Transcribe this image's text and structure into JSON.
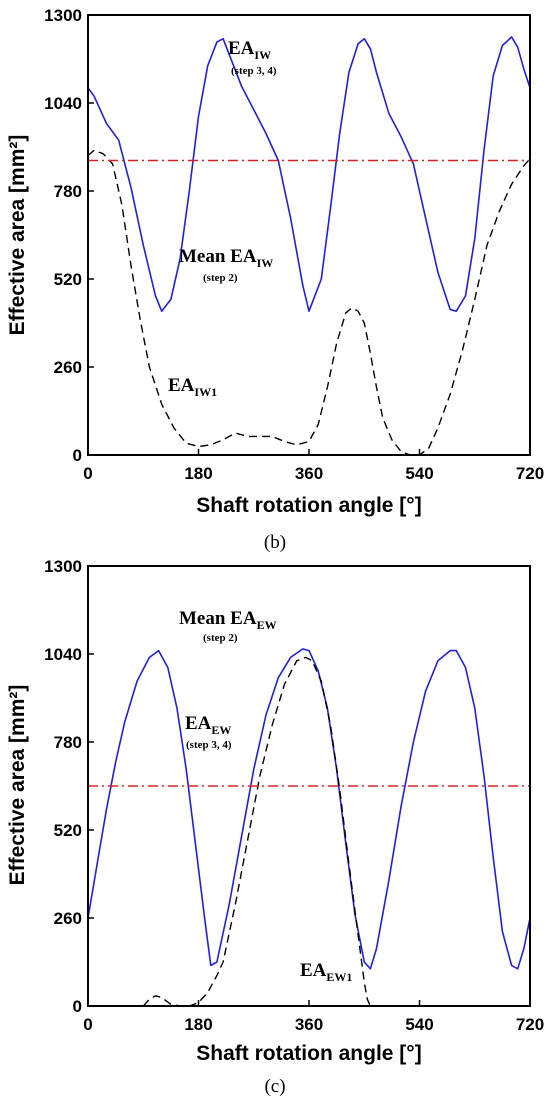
{
  "chart_data": [
    {
      "type": "line",
      "panel": "b",
      "caption": "(b)",
      "xlabel": "Shaft rotation angle [°]",
      "ylabel": "Effective area [mm²]",
      "xlim": [
        0,
        720
      ],
      "ylim": [
        0,
        1300
      ],
      "xticks": [
        0,
        180,
        360,
        540,
        720
      ],
      "yticks": [
        0,
        260,
        520,
        780,
        1040,
        1300
      ],
      "xtick_labels": [
        "0",
        "180",
        "360",
        "540",
        "720"
      ],
      "ytick_labels": [
        "0",
        "260",
        "520",
        "780",
        1040,
        "1300"
      ],
      "grid": false,
      "series": [
        {
          "name": "EA_IW (step 3, 4)",
          "style": "solid",
          "color": "#1f1fe6",
          "x": [
            0,
            10,
            30,
            50,
            70,
            90,
            110,
            120,
            135,
            150,
            165,
            180,
            195,
            210,
            220,
            235,
            250,
            270,
            290,
            310,
            330,
            350,
            360,
            380,
            395,
            410,
            425,
            440,
            450,
            460,
            470,
            490,
            510,
            530,
            550,
            570,
            590,
            600,
            615,
            630,
            645,
            660,
            675,
            690,
            700,
            710,
            720
          ],
          "y": [
            1085,
            1060,
            980,
            930,
            790,
            620,
            470,
            425,
            460,
            580,
            780,
            1000,
            1150,
            1220,
            1230,
            1160,
            1090,
            1020,
            950,
            870,
            700,
            500,
            425,
            520,
            730,
            950,
            1130,
            1215,
            1230,
            1200,
            1130,
            1010,
            940,
            860,
            700,
            540,
            430,
            425,
            470,
            640,
            900,
            1120,
            1210,
            1235,
            1205,
            1140,
            1085
          ]
        },
        {
          "name": "EA_IW1",
          "style": "dashed",
          "color": "#000000",
          "x": [
            0,
            10,
            25,
            40,
            55,
            70,
            85,
            100,
            120,
            140,
            160,
            180,
            200,
            220,
            240,
            260,
            280,
            300,
            320,
            340,
            360,
            375,
            390,
            405,
            420,
            430,
            440,
            450,
            460,
            470,
            480,
            495,
            510,
            525,
            540,
            555,
            570,
            590,
            610,
            630,
            650,
            670,
            690,
            710,
            720
          ],
          "y": [
            885,
            900,
            890,
            860,
            740,
            560,
            400,
            260,
            150,
            80,
            35,
            25,
            30,
            45,
            65,
            55,
            55,
            55,
            40,
            30,
            40,
            90,
            200,
            330,
            420,
            435,
            425,
            390,
            300,
            200,
            110,
            45,
            10,
            0,
            0,
            20,
            80,
            180,
            310,
            460,
            620,
            720,
            800,
            855,
            875
          ]
        },
        {
          "name": "Mean EA_IW (step 2)",
          "style": "dashdot",
          "color": "#e02020",
          "x": [
            0,
            720
          ],
          "y": [
            870,
            870
          ]
        }
      ],
      "annotations": [
        {
          "main": "EA",
          "sub": "IW",
          "step": "(step 3, 4)"
        },
        {
          "main": "Mean EA",
          "sub": "IW",
          "step": "(step 2)"
        },
        {
          "main": "EA",
          "sub": "IW1",
          "step": ""
        }
      ]
    },
    {
      "type": "line",
      "panel": "c",
      "caption": "(c)",
      "xlabel": "Shaft rotation angle [°]",
      "ylabel": "Effective area [mm²]",
      "xlim": [
        0,
        720
      ],
      "ylim": [
        0,
        1300
      ],
      "xticks": [
        0,
        180,
        360,
        540,
        720
      ],
      "yticks": [
        0,
        260,
        520,
        780,
        1040,
        1300
      ],
      "xtick_labels": [
        "0",
        "180",
        "360",
        "540",
        "720"
      ],
      "ytick_labels": [
        "0",
        "260",
        "520",
        "780",
        "1040",
        "1300"
      ],
      "grid": false,
      "series": [
        {
          "name": "EA_EW (step 3, 4)",
          "style": "solid",
          "color": "#1f1fe6",
          "x": [
            0,
            15,
            30,
            45,
            60,
            80,
            100,
            115,
            130,
            145,
            160,
            175,
            190,
            200,
            210,
            230,
            250,
            270,
            290,
            310,
            330,
            350,
            360,
            375,
            390,
            405,
            420,
            435,
            450,
            460,
            470,
            490,
            510,
            530,
            550,
            570,
            590,
            600,
            615,
            630,
            645,
            660,
            675,
            690,
            700,
            710,
            720
          ],
          "y": [
            260,
            420,
            580,
            720,
            840,
            960,
            1030,
            1050,
            1000,
            880,
            700,
            480,
            260,
            120,
            130,
            300,
            500,
            700,
            860,
            970,
            1030,
            1055,
            1050,
            990,
            880,
            700,
            480,
            270,
            130,
            110,
            170,
            370,
            590,
            780,
            930,
            1020,
            1050,
            1050,
            1000,
            880,
            680,
            440,
            220,
            120,
            110,
            170,
            260
          ]
        },
        {
          "name": "EA_EW1",
          "style": "dashed",
          "color": "#000000",
          "x": [
            90,
            100,
            110,
            120,
            135,
            150,
            165,
            180,
            195,
            210,
            220,
            240,
            260,
            280,
            300,
            320,
            340,
            355,
            365,
            380,
            395,
            410,
            425,
            440,
            450,
            455,
            460
          ],
          "y": [
            0,
            20,
            30,
            25,
            5,
            0,
            0,
            10,
            40,
            90,
            130,
            300,
            490,
            680,
            830,
            950,
            1020,
            1030,
            1020,
            960,
            830,
            640,
            420,
            210,
            70,
            20,
            0
          ]
        },
        {
          "name": "Mean EA_EW (step 2)",
          "style": "dashdot",
          "color": "#e02020",
          "x": [
            0,
            720
          ],
          "y": [
            650,
            650
          ]
        }
      ],
      "annotations": [
        {
          "main": "Mean EA",
          "sub": "EW",
          "step": "(step 2)"
        },
        {
          "main": "EA",
          "sub": "EW",
          "step": "(step 3, 4)"
        },
        {
          "main": "EA",
          "sub": "EW1",
          "step": ""
        }
      ]
    }
  ]
}
